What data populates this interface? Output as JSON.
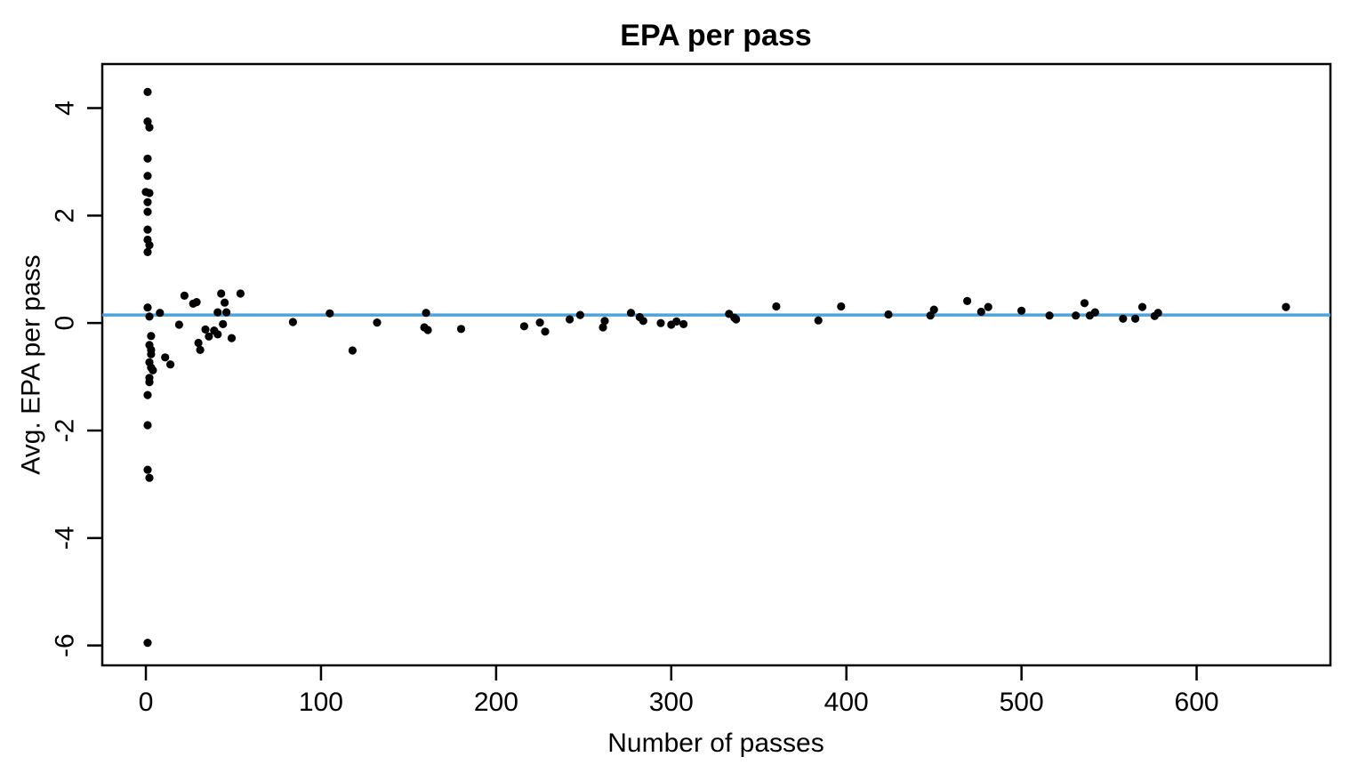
{
  "chart_data": {
    "type": "scatter",
    "title": "EPA per pass",
    "xlabel": "Number of passes",
    "ylabel": "Avg. EPA per pass",
    "xlim": [
      -24.9,
      676.4
    ],
    "ylim": [
      -6.37,
      4.82
    ],
    "x_ticks": [
      0,
      100,
      200,
      300,
      400,
      500,
      600
    ],
    "y_ticks": [
      -6,
      -4,
      -2,
      0,
      2,
      4
    ],
    "grid": false,
    "legend": "none",
    "background_color": "#ffffff",
    "point_color": "#000000",
    "axis_color": "#000000",
    "reference_line": {
      "y": 0.15,
      "color": "#4FA3DC"
    },
    "points": [
      [
        1,
        4.3
      ],
      [
        1,
        3.75
      ],
      [
        2,
        3.64
      ],
      [
        1,
        3.06
      ],
      [
        1,
        2.74
      ],
      [
        0,
        2.44
      ],
      [
        2,
        2.42
      ],
      [
        1,
        2.25
      ],
      [
        1,
        2.07
      ],
      [
        1,
        1.74
      ],
      [
        1,
        1.55
      ],
      [
        2,
        1.45
      ],
      [
        1,
        1.32
      ],
      [
        1,
        0.29
      ],
      [
        2,
        0.12
      ],
      [
        3,
        -0.24
      ],
      [
        2,
        -0.41
      ],
      [
        3,
        -0.5
      ],
      [
        3,
        -0.58
      ],
      [
        2,
        -0.73
      ],
      [
        3,
        -0.83
      ],
      [
        4,
        -0.88
      ],
      [
        2,
        -1.02
      ],
      [
        2,
        -1.1
      ],
      [
        1,
        -1.34
      ],
      [
        1,
        -1.9
      ],
      [
        1,
        -2.73
      ],
      [
        2,
        -2.88
      ],
      [
        1,
        -5.95
      ],
      [
        8,
        0.19
      ],
      [
        11,
        -0.64
      ],
      [
        14,
        -0.77
      ],
      [
        19,
        -0.03
      ],
      [
        22,
        0.51
      ],
      [
        27,
        0.36
      ],
      [
        29,
        0.39
      ],
      [
        30,
        -0.37
      ],
      [
        31,
        -0.5
      ],
      [
        34,
        -0.12
      ],
      [
        36,
        -0.25
      ],
      [
        39,
        -0.14
      ],
      [
        41,
        -0.21
      ],
      [
        41,
        0.2
      ],
      [
        43,
        0.55
      ],
      [
        44,
        -0.02
      ],
      [
        45,
        0.38
      ],
      [
        46,
        0.2
      ],
      [
        49,
        -0.28
      ],
      [
        54,
        0.55
      ],
      [
        84,
        0.02
      ],
      [
        105,
        0.18
      ],
      [
        118,
        -0.51
      ],
      [
        132,
        0.01
      ],
      [
        159,
        -0.08
      ],
      [
        161,
        -0.13
      ],
      [
        160,
        0.19
      ],
      [
        180,
        -0.11
      ],
      [
        216,
        -0.06
      ],
      [
        225,
        0.01
      ],
      [
        228,
        -0.16
      ],
      [
        242,
        0.07
      ],
      [
        248,
        0.15
      ],
      [
        261,
        -0.08
      ],
      [
        262,
        0.04
      ],
      [
        277,
        0.19
      ],
      [
        282,
        0.11
      ],
      [
        284,
        0.04
      ],
      [
        294,
        0.0
      ],
      [
        300,
        -0.03
      ],
      [
        303,
        0.03
      ],
      [
        307,
        -0.02
      ],
      [
        333,
        0.17
      ],
      [
        336,
        0.1
      ],
      [
        337,
        0.07
      ],
      [
        360,
        0.31
      ],
      [
        384,
        0.05
      ],
      [
        397,
        0.31
      ],
      [
        424,
        0.16
      ],
      [
        448,
        0.14
      ],
      [
        450,
        0.25
      ],
      [
        469,
        0.41
      ],
      [
        477,
        0.21
      ],
      [
        481,
        0.3
      ],
      [
        500,
        0.23
      ],
      [
        516,
        0.14
      ],
      [
        531,
        0.14
      ],
      [
        536,
        0.37
      ],
      [
        539,
        0.14
      ],
      [
        542,
        0.2
      ],
      [
        558,
        0.08
      ],
      [
        565,
        0.08
      ],
      [
        569,
        0.3
      ],
      [
        576,
        0.13
      ],
      [
        578,
        0.19
      ],
      [
        651,
        0.3
      ]
    ]
  }
}
